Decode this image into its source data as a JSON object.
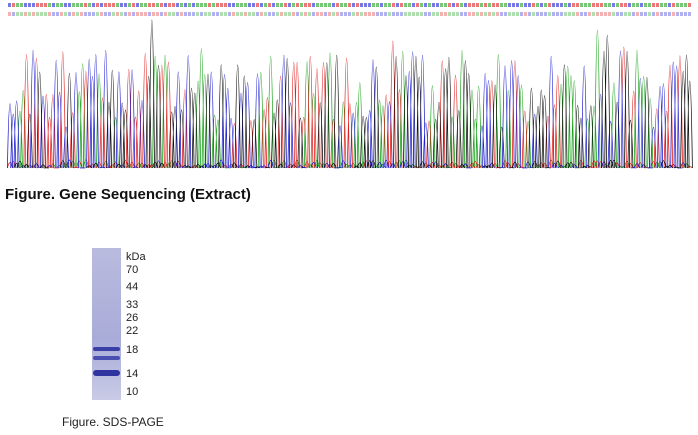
{
  "figures": [
    {
      "caption": "Figure. Gene Sequencing (Extract)"
    },
    {
      "caption": "Figure. SDS-PAGE",
      "unit": "kDa",
      "markers": [
        "70",
        "44",
        "33",
        "26",
        "22",
        "18",
        "14",
        "10"
      ]
    }
  ]
}
